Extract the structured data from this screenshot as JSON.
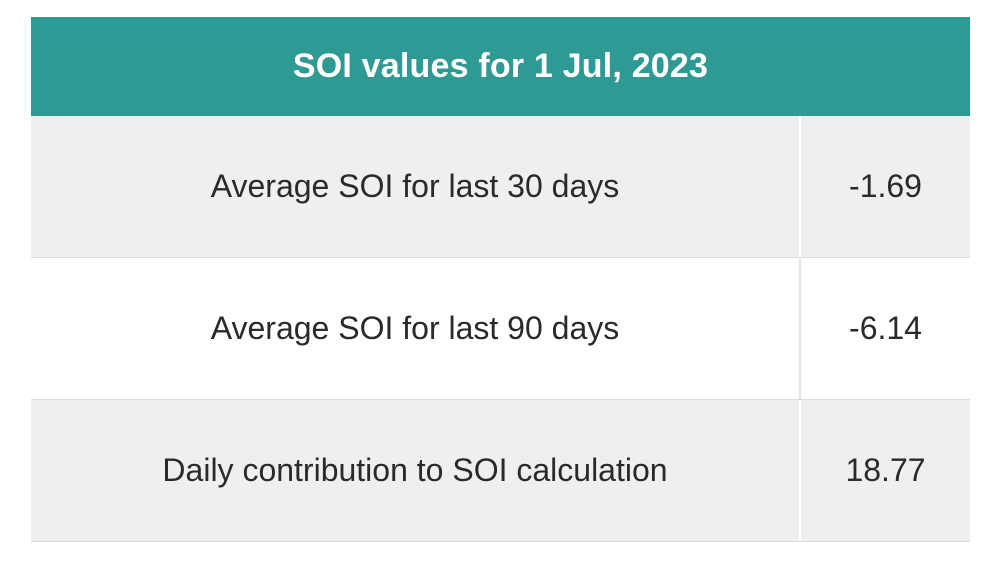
{
  "table": {
    "title": "SOI values for 1 Jul, 2023",
    "header_color": "#2f9a93",
    "rows": [
      {
        "label": "Average SOI for last 30 days",
        "value": "-1.69"
      },
      {
        "label": "Average SOI for last 90 days",
        "value": "-6.14"
      },
      {
        "label": "Daily contribution to SOI calculation",
        "value": "18.77"
      }
    ]
  }
}
